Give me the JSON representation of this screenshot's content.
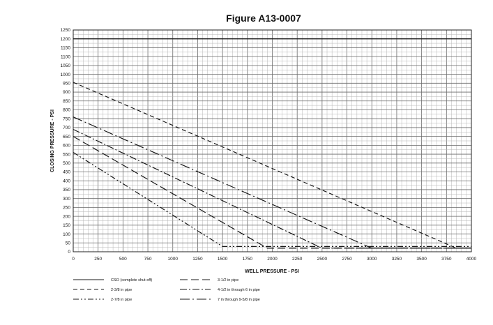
{
  "chart_data": {
    "type": "line",
    "title": "Figure A13-0007",
    "xlabel": "WELL PRESSURE - PSI",
    "ylabel": "CLOSING PRESSURE - PSI",
    "xlim": [
      0,
      4000
    ],
    "ylim": [
      0,
      1250
    ],
    "x_ticks": [
      0,
      250,
      500,
      750,
      1000,
      1250,
      1500,
      1750,
      2000,
      2250,
      2500,
      2750,
      3000,
      3250,
      3500,
      3750,
      4000
    ],
    "y_ticks": [
      0,
      50,
      100,
      150,
      200,
      250,
      300,
      350,
      400,
      450,
      500,
      550,
      600,
      650,
      700,
      750,
      800,
      850,
      900,
      950,
      1000,
      1050,
      1100,
      1150,
      1200,
      1250
    ],
    "grid": true,
    "legend_position": "bottom",
    "series": [
      {
        "name": "CSO (complete shut-off)",
        "dash": "solid",
        "x": [
          0,
          4000
        ],
        "y": [
          1200,
          1200
        ]
      },
      {
        "name": "2-3/8 in pipe",
        "dash": "dash",
        "x": [
          0,
          3850,
          4000
        ],
        "y": [
          955,
          20,
          20
        ]
      },
      {
        "name": "2-7/8 in pipe",
        "dash": "dashdotdot",
        "x": [
          0,
          1500,
          4000
        ],
        "y": [
          560,
          30,
          30
        ]
      },
      {
        "name": "3-1/2 in pipe",
        "dash": "longdash",
        "x": [
          0,
          1950,
          4000
        ],
        "y": [
          650,
          20,
          20
        ]
      },
      {
        "name": "4-1/2 in through 6 in pipe",
        "dash": "dashdot",
        "x": [
          0,
          2500,
          4000
        ],
        "y": [
          690,
          20,
          20
        ]
      },
      {
        "name": "7 in through 9-5/8 in pipe",
        "dash": "dashdotlong",
        "x": [
          0,
          3000,
          4000
        ],
        "y": [
          760,
          20,
          20
        ]
      }
    ]
  }
}
